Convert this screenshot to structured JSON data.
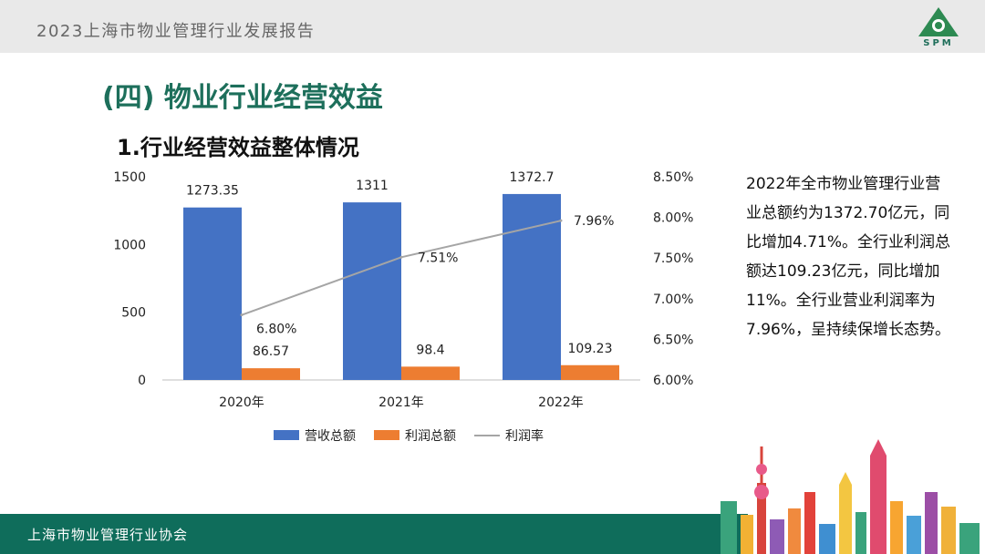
{
  "header": {
    "title": "2023上海市物业管理行业发展报告",
    "logo_text": "SPM"
  },
  "section_title": "(四) 物业行业经营效益",
  "chart_heading": "1.行业经营效益整体情况",
  "summary": "2022年全市物业管理行业营业总额约为1372.70亿元，同比增加4.71%。全行业利润总额达109.23亿元，同比增加11%。全行业营业利润率为7.96%，呈持续保增长态势。",
  "footer": {
    "org": "上海市物业管理行业协会"
  },
  "colors": {
    "brand_green": "#1d6f5b",
    "revenue": "#4472c4",
    "profit": "#ed7d31",
    "margin": "#a5a5a5"
  },
  "chart_data": {
    "type": "bar",
    "categories": [
      "2020年",
      "2021年",
      "2022年"
    ],
    "series": [
      {
        "name": "营收总额",
        "kind": "bar",
        "axis": "left",
        "values": [
          1273.35,
          1311,
          1372.7
        ],
        "labels": [
          "1273.35",
          "1311",
          "1372.7"
        ]
      },
      {
        "name": "利润总额",
        "kind": "bar",
        "axis": "left",
        "values": [
          86.57,
          98.4,
          109.23
        ],
        "labels": [
          "86.57",
          "98.4",
          "109.23"
        ]
      },
      {
        "name": "利润率",
        "kind": "line",
        "axis": "right",
        "values": [
          6.8,
          7.51,
          7.96
        ],
        "labels": [
          "6.80%",
          "7.51%",
          "7.96%"
        ]
      }
    ],
    "y_left": {
      "ylim": [
        0,
        1500
      ],
      "ticks": [
        "0",
        "500",
        "1000",
        "1500"
      ]
    },
    "y_right": {
      "ylim": [
        6.0,
        8.5
      ],
      "ticks": [
        "6.00%",
        "6.50%",
        "7.00%",
        "7.50%",
        "8.00%",
        "8.50%"
      ]
    },
    "legend_position": "bottom",
    "grid": false
  }
}
